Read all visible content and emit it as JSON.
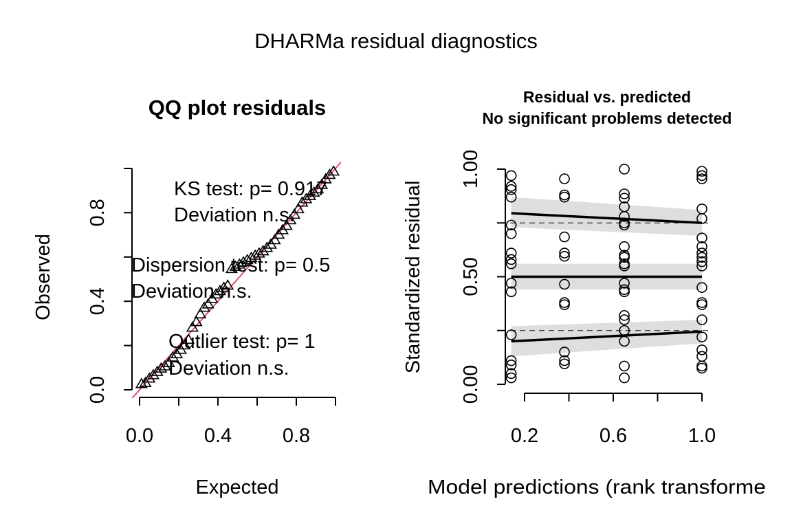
{
  "figure_title": "DHARMa residual diagnostics",
  "colors": {
    "identity_line": "#DF536B",
    "band_fill": "#DEDEDE",
    "points": "#000000"
  },
  "left_panel": {
    "title": "QQ plot residuals",
    "ks_line1": "KS test: p= 0.917",
    "ks_line2": "Deviation  n.s.",
    "disp_line1": "Dispersion test: p= 0.5",
    "disp_line2": "Deviation  n.s.",
    "out_line1": "Outlier test: p= 1",
    "out_line2": "Deviation  n.s."
  },
  "right_panel": {
    "title_line1": "Residual vs. predicted",
    "title_line2": "No significant problems detected"
  },
  "chart_data": [
    {
      "type": "scatter",
      "title": "QQ plot residuals",
      "xlabel": "Expected",
      "ylabel": "Observed",
      "xlim": [
        0,
        1
      ],
      "ylim": [
        0,
        1
      ],
      "x_ticks": [
        0.0,
        0.2,
        0.4,
        0.6,
        0.8,
        1.0
      ],
      "x_tick_labels": [
        "0.0",
        "0.4",
        "0.8"
      ],
      "y_ticks": [
        0.0,
        0.2,
        0.4,
        0.6,
        0.8,
        1.0
      ],
      "y_tick_labels": [
        "0.0",
        "0.4",
        "0.8"
      ],
      "identity_line": true,
      "marker": "triangle",
      "points": [
        [
          0.01,
          0.025
        ],
        [
          0.03,
          0.03
        ],
        [
          0.05,
          0.05
        ],
        [
          0.07,
          0.065
        ],
        [
          0.09,
          0.08
        ],
        [
          0.11,
          0.095
        ],
        [
          0.13,
          0.105
        ],
        [
          0.15,
          0.12
        ],
        [
          0.17,
          0.145
        ],
        [
          0.19,
          0.16
        ],
        [
          0.21,
          0.18
        ],
        [
          0.23,
          0.2
        ],
        [
          0.25,
          0.225
        ],
        [
          0.27,
          0.28
        ],
        [
          0.29,
          0.305
        ],
        [
          0.31,
          0.34
        ],
        [
          0.33,
          0.37
        ],
        [
          0.35,
          0.385
        ],
        [
          0.37,
          0.41
        ],
        [
          0.39,
          0.43
        ],
        [
          0.41,
          0.445
        ],
        [
          0.43,
          0.46
        ],
        [
          0.45,
          0.47
        ],
        [
          0.47,
          0.545
        ],
        [
          0.49,
          0.555
        ],
        [
          0.51,
          0.565
        ],
        [
          0.53,
          0.575
        ],
        [
          0.55,
          0.585
        ],
        [
          0.57,
          0.595
        ],
        [
          0.59,
          0.605
        ],
        [
          0.61,
          0.615
        ],
        [
          0.63,
          0.625
        ],
        [
          0.65,
          0.64
        ],
        [
          0.67,
          0.655
        ],
        [
          0.69,
          0.675
        ],
        [
          0.71,
          0.7
        ],
        [
          0.73,
          0.72
        ],
        [
          0.75,
          0.74
        ],
        [
          0.77,
          0.765
        ],
        [
          0.79,
          0.79
        ],
        [
          0.81,
          0.815
        ],
        [
          0.83,
          0.845
        ],
        [
          0.85,
          0.86
        ],
        [
          0.87,
          0.875
        ],
        [
          0.89,
          0.89
        ],
        [
          0.91,
          0.905
        ],
        [
          0.93,
          0.925
        ],
        [
          0.95,
          0.95
        ],
        [
          0.97,
          0.97
        ],
        [
          0.99,
          0.985
        ]
      ]
    },
    {
      "type": "scatter",
      "title": "Residual vs. predicted\nNo significant problems detected",
      "xlabel": "Model predictions (rank transformed)",
      "ylabel": "Standardized residual",
      "xlim": [
        0.1,
        1.03
      ],
      "ylim": [
        0,
        1
      ],
      "x_ticks": [
        0.2,
        0.4,
        0.6,
        0.8,
        1.0
      ],
      "x_tick_labels": [
        "0.2",
        "0.6",
        "1.0"
      ],
      "y_ticks": [
        0.0,
        0.25,
        0.5,
        0.75,
        1.0
      ],
      "y_tick_labels": [
        "0.00",
        "0.50",
        "1.00"
      ],
      "reference_lines": [
        0.25,
        0.75
      ],
      "marker": "circle",
      "points": [
        [
          0.14,
          0.97
        ],
        [
          0.14,
          0.92
        ],
        [
          0.14,
          0.905
        ],
        [
          0.14,
          0.87
        ],
        [
          0.14,
          0.74
        ],
        [
          0.14,
          0.7
        ],
        [
          0.14,
          0.61
        ],
        [
          0.14,
          0.58
        ],
        [
          0.14,
          0.56
        ],
        [
          0.14,
          0.47
        ],
        [
          0.14,
          0.43
        ],
        [
          0.14,
          0.23
        ],
        [
          0.14,
          0.11
        ],
        [
          0.14,
          0.09
        ],
        [
          0.14,
          0.05
        ],
        [
          0.14,
          0.03
        ],
        [
          0.38,
          0.955
        ],
        [
          0.38,
          0.88
        ],
        [
          0.38,
          0.87
        ],
        [
          0.38,
          0.685
        ],
        [
          0.38,
          0.61
        ],
        [
          0.38,
          0.595
        ],
        [
          0.38,
          0.465
        ],
        [
          0.38,
          0.38
        ],
        [
          0.38,
          0.37
        ],
        [
          0.38,
          0.15
        ],
        [
          0.38,
          0.11
        ],
        [
          0.38,
          0.095
        ],
        [
          0.65,
          1.0
        ],
        [
          0.65,
          0.885
        ],
        [
          0.65,
          0.865
        ],
        [
          0.65,
          0.825
        ],
        [
          0.65,
          0.78
        ],
        [
          0.65,
          0.75
        ],
        [
          0.65,
          0.74
        ],
        [
          0.65,
          0.64
        ],
        [
          0.65,
          0.6
        ],
        [
          0.65,
          0.59
        ],
        [
          0.65,
          0.56
        ],
        [
          0.65,
          0.55
        ],
        [
          0.65,
          0.47
        ],
        [
          0.65,
          0.44
        ],
        [
          0.65,
          0.43
        ],
        [
          0.65,
          0.32
        ],
        [
          0.65,
          0.3
        ],
        [
          0.65,
          0.25
        ],
        [
          0.65,
          0.2
        ],
        [
          0.65,
          0.085
        ],
        [
          0.65,
          0.03
        ],
        [
          1.0,
          0.99
        ],
        [
          1.0,
          0.97
        ],
        [
          1.0,
          0.955
        ],
        [
          1.0,
          0.815
        ],
        [
          1.0,
          0.77
        ],
        [
          1.0,
          0.68
        ],
        [
          1.0,
          0.64
        ],
        [
          1.0,
          0.61
        ],
        [
          1.0,
          0.59
        ],
        [
          1.0,
          0.57
        ],
        [
          1.0,
          0.55
        ],
        [
          1.0,
          0.45
        ],
        [
          1.0,
          0.38
        ],
        [
          1.0,
          0.37
        ],
        [
          1.0,
          0.3
        ],
        [
          1.0,
          0.22
        ],
        [
          1.0,
          0.16
        ],
        [
          1.0,
          0.13
        ],
        [
          1.0,
          0.085
        ],
        [
          1.0,
          0.075
        ]
      ],
      "quantile_regressions": [
        {
          "quantile": 0.25,
          "x": [
            0.14,
            1.0
          ],
          "y": [
            0.2,
            0.245
          ],
          "band_lower": [
            0.13,
            0.19
          ],
          "band_upper": [
            0.27,
            0.3
          ]
        },
        {
          "quantile": 0.5,
          "x": [
            0.14,
            1.0
          ],
          "y": [
            0.5,
            0.5
          ],
          "band_lower": [
            0.44,
            0.44
          ],
          "band_upper": [
            0.56,
            0.56
          ]
        },
        {
          "quantile": 0.75,
          "x": [
            0.14,
            1.0
          ],
          "y": [
            0.795,
            0.75
          ],
          "band_lower": [
            0.73,
            0.69
          ],
          "band_upper": [
            0.87,
            0.81
          ]
        }
      ]
    }
  ]
}
